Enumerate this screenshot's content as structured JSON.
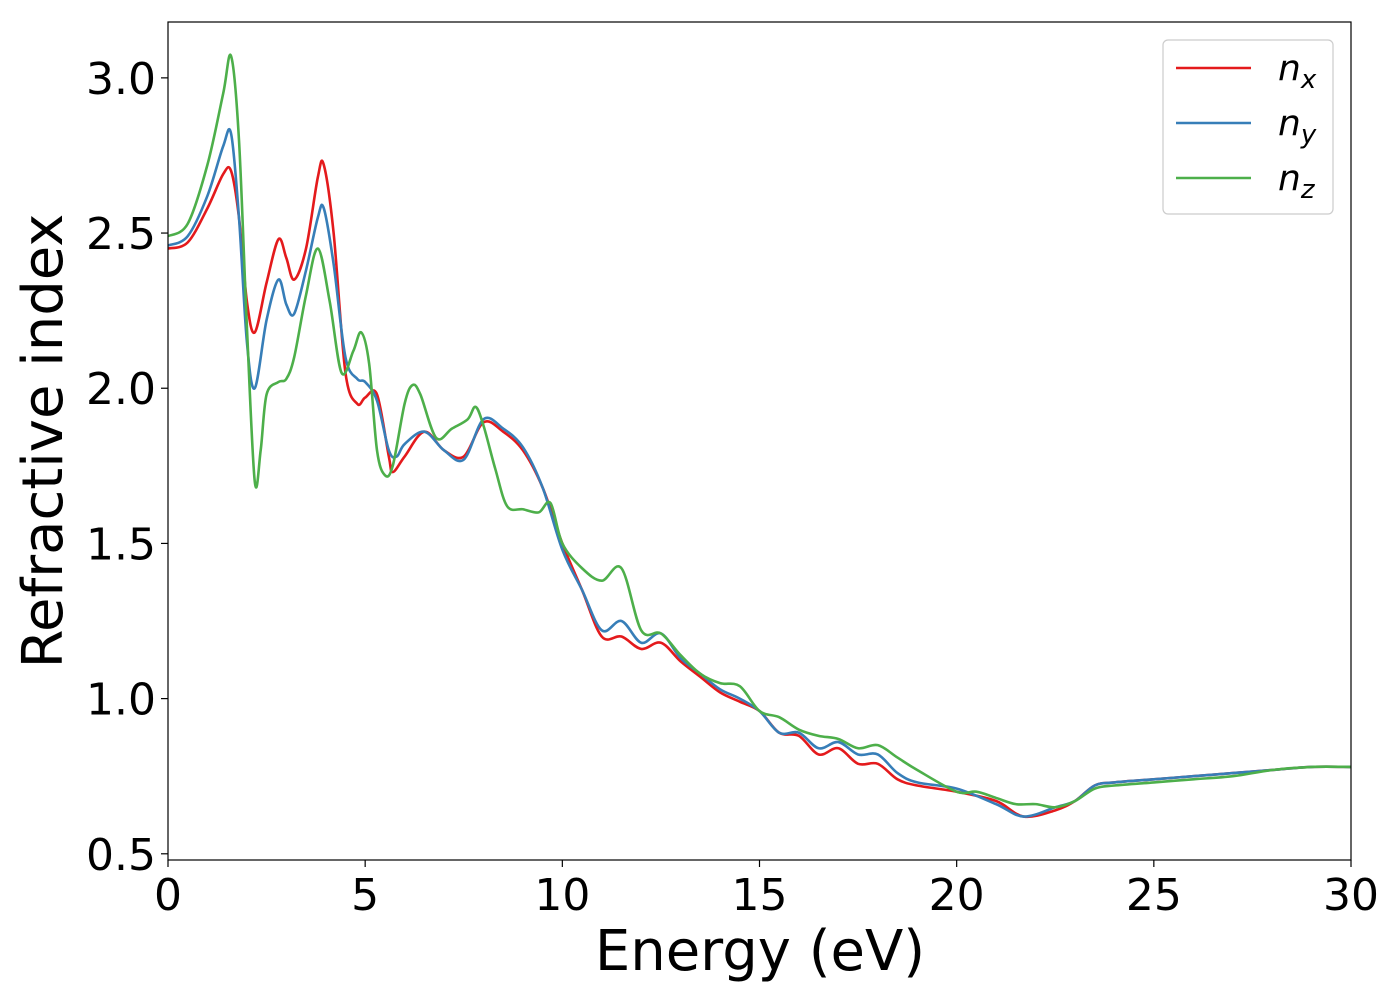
{
  "chart_data": {
    "type": "line",
    "title": "",
    "xlabel": "Energy (eV)",
    "ylabel": "Refractive index",
    "xlim": [
      0,
      30
    ],
    "ylim": [
      0.48,
      3.18
    ],
    "xticks": [
      0,
      5,
      10,
      15,
      20,
      25,
      30
    ],
    "xtick_labels": [
      "0",
      "5",
      "10",
      "15",
      "20",
      "25",
      "30"
    ],
    "yticks": [
      0.5,
      1.0,
      1.5,
      2.0,
      2.5,
      3.0
    ],
    "ytick_labels": [
      "0.5",
      "1.0",
      "1.5",
      "2.0",
      "2.5",
      "3.0"
    ],
    "grid": false,
    "legend_position": "top-right",
    "series": [
      {
        "name": "n",
        "subscript": "x",
        "color": "#e41a1c",
        "x": [
          0,
          0.5,
          1.0,
          1.4,
          1.6,
          1.8,
          2.0,
          2.2,
          2.5,
          2.8,
          3.0,
          3.2,
          3.5,
          3.8,
          3.95,
          4.2,
          4.5,
          4.8,
          5.0,
          5.3,
          5.6,
          5.7,
          6.0,
          6.5,
          7.0,
          7.5,
          8.0,
          8.5,
          9.0,
          9.5,
          10.0,
          10.5,
          11.0,
          11.5,
          12.0,
          12.5,
          13.0,
          13.5,
          14.0,
          14.5,
          15.0,
          15.5,
          16.0,
          16.5,
          17.0,
          17.5,
          18.0,
          18.5,
          19.0,
          20.0,
          21.0,
          21.7,
          22.5,
          23.0,
          23.5,
          24.0,
          25.0,
          26.0,
          27.0,
          28.0,
          29.0,
          30.0
        ],
        "y": [
          2.45,
          2.47,
          2.58,
          2.69,
          2.7,
          2.55,
          2.28,
          2.18,
          2.34,
          2.48,
          2.42,
          2.35,
          2.45,
          2.68,
          2.72,
          2.5,
          2.05,
          1.95,
          1.97,
          1.98,
          1.78,
          1.73,
          1.78,
          1.86,
          1.8,
          1.78,
          1.89,
          1.86,
          1.8,
          1.68,
          1.5,
          1.35,
          1.2,
          1.2,
          1.16,
          1.18,
          1.12,
          1.07,
          1.02,
          0.99,
          0.96,
          0.89,
          0.88,
          0.82,
          0.84,
          0.79,
          0.79,
          0.74,
          0.72,
          0.7,
          0.67,
          0.62,
          0.64,
          0.67,
          0.72,
          0.73,
          0.74,
          0.75,
          0.76,
          0.77,
          0.78,
          0.78
        ]
      },
      {
        "name": "n",
        "subscript": "y",
        "color": "#377eb8",
        "x": [
          0,
          0.5,
          1.0,
          1.4,
          1.6,
          1.8,
          2.0,
          2.2,
          2.5,
          2.8,
          3.0,
          3.2,
          3.5,
          3.8,
          3.95,
          4.2,
          4.5,
          4.8,
          5.0,
          5.3,
          5.6,
          5.8,
          6.0,
          6.5,
          7.0,
          7.5,
          8.0,
          8.5,
          9.0,
          9.5,
          10.0,
          10.5,
          11.0,
          11.5,
          12.0,
          12.5,
          13.0,
          13.5,
          14.0,
          14.5,
          15.0,
          15.5,
          16.0,
          16.5,
          17.0,
          17.5,
          18.0,
          18.5,
          19.0,
          20.0,
          21.0,
          21.7,
          22.5,
          23.0,
          23.5,
          24.0,
          25.0,
          26.0,
          27.0,
          28.0,
          29.0,
          30.0
        ],
        "y": [
          2.46,
          2.49,
          2.62,
          2.78,
          2.82,
          2.55,
          2.15,
          2.0,
          2.22,
          2.35,
          2.27,
          2.24,
          2.38,
          2.55,
          2.58,
          2.4,
          2.1,
          2.03,
          2.02,
          1.96,
          1.8,
          1.78,
          1.82,
          1.86,
          1.8,
          1.77,
          1.9,
          1.87,
          1.81,
          1.68,
          1.48,
          1.35,
          1.22,
          1.25,
          1.18,
          1.21,
          1.13,
          1.08,
          1.03,
          1.0,
          0.96,
          0.89,
          0.89,
          0.84,
          0.86,
          0.82,
          0.82,
          0.76,
          0.73,
          0.71,
          0.66,
          0.62,
          0.65,
          0.67,
          0.72,
          0.73,
          0.74,
          0.75,
          0.76,
          0.77,
          0.78,
          0.78
        ]
      },
      {
        "name": "n",
        "subscript": "z",
        "color": "#4daf4a",
        "x": [
          0,
          0.5,
          1.0,
          1.4,
          1.6,
          1.8,
          2.0,
          2.2,
          2.35,
          2.5,
          2.8,
          3.0,
          3.2,
          3.5,
          3.8,
          4.1,
          4.4,
          4.7,
          4.9,
          5.1,
          5.3,
          5.5,
          5.7,
          6.0,
          6.2,
          6.4,
          6.8,
          7.2,
          7.6,
          7.8,
          8.0,
          8.3,
          8.6,
          9.0,
          9.4,
          9.7,
          10.0,
          10.5,
          11.0,
          11.5,
          12.0,
          12.5,
          13.0,
          13.5,
          14.0,
          14.5,
          15.0,
          15.5,
          16.0,
          16.5,
          17.0,
          17.5,
          18.0,
          18.5,
          19.0,
          20.0,
          20.5,
          21.0,
          21.5,
          22.0,
          22.5,
          23.0,
          23.5,
          24.0,
          25.0,
          26.0,
          27.0,
          28.0,
          29.0,
          30.0
        ],
        "y": [
          2.49,
          2.53,
          2.72,
          2.95,
          3.07,
          2.8,
          2.2,
          1.7,
          1.8,
          1.98,
          2.02,
          2.03,
          2.1,
          2.3,
          2.45,
          2.28,
          2.05,
          2.12,
          2.18,
          2.08,
          1.8,
          1.72,
          1.75,
          1.95,
          2.01,
          1.98,
          1.84,
          1.87,
          1.9,
          1.94,
          1.88,
          1.74,
          1.62,
          1.61,
          1.6,
          1.63,
          1.5,
          1.42,
          1.38,
          1.42,
          1.22,
          1.21,
          1.14,
          1.08,
          1.05,
          1.04,
          0.96,
          0.94,
          0.9,
          0.88,
          0.87,
          0.84,
          0.85,
          0.81,
          0.77,
          0.7,
          0.7,
          0.68,
          0.66,
          0.66,
          0.65,
          0.67,
          0.71,
          0.72,
          0.73,
          0.74,
          0.75,
          0.77,
          0.78,
          0.78
        ]
      }
    ]
  }
}
